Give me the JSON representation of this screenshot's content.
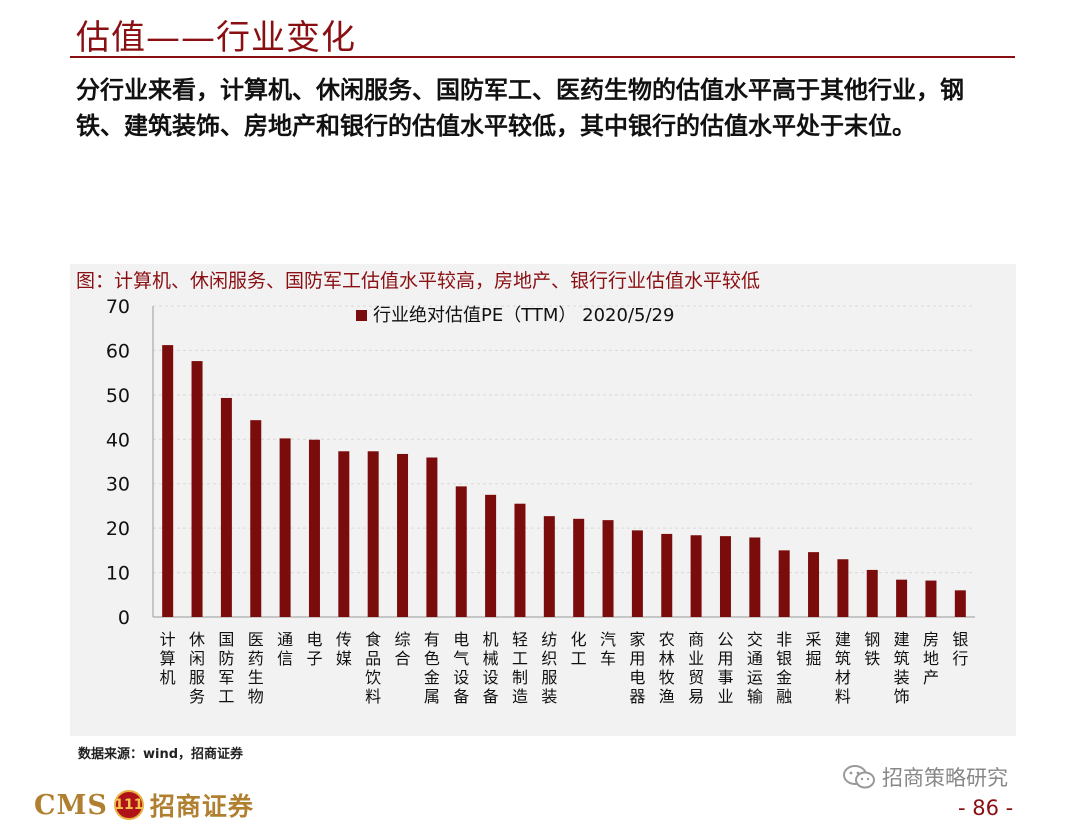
{
  "page": {
    "title": "估值——行业变化",
    "summary": "分行业来看，计算机、休闲服务、国防军工、医药生物的估值水平高于其他行业，钢铁、建筑装饰、房地产和银行的估值水平较低，其中银行的估值水平处于末位。",
    "chart_heading": "图：计算机、休闲服务、国防军工估值水平较高，房地产、银行行业估值水平较低",
    "source": "数据来源：wind，招商证券",
    "logo_cms": "CMS",
    "logo_badge": "111",
    "logo_cn": "招商证券",
    "wechat": "招商策略研究",
    "page_number": "- 86 -"
  },
  "colors": {
    "accent": "#8a0f12",
    "bar": "#7b0c0c",
    "chart_bg": "#f2f2f2",
    "grid": "#d9d9d9"
  },
  "chart_data": {
    "type": "bar",
    "legend": "行业绝对估值PE（TTM） 2020/5/29",
    "legend_position": "top-center",
    "categories": [
      "计算机",
      "休闲服务",
      "国防军工",
      "医药生物",
      "通信",
      "电子",
      "传媒",
      "食品饮料",
      "综合",
      "有色金属",
      "电气设备",
      "机械设备",
      "轻工制造",
      "纺织服装",
      "化工",
      "汽车",
      "家用电器",
      "农林牧渔",
      "商业贸易",
      "公用事业",
      "交通运输",
      "非银金融",
      "采掘",
      "建筑材料",
      "钢铁",
      "建筑装饰",
      "房地产",
      "银行"
    ],
    "series": [
      {
        "name": "行业绝对估值PE（TTM） 2020/5/29",
        "values": [
          61.2,
          57.6,
          49.3,
          44.3,
          40.2,
          39.9,
          37.3,
          37.3,
          36.7,
          35.9,
          29.4,
          27.5,
          25.5,
          22.7,
          22.1,
          21.8,
          19.5,
          18.7,
          18.4,
          18.2,
          17.9,
          15.0,
          14.6,
          13.0,
          10.6,
          8.4,
          8.2,
          6.0
        ]
      }
    ],
    "ylim": [
      0,
      70
    ],
    "yticks": [
      "0",
      "10",
      "20",
      "30",
      "40",
      "50",
      "60",
      "70"
    ],
    "grid": true
  }
}
